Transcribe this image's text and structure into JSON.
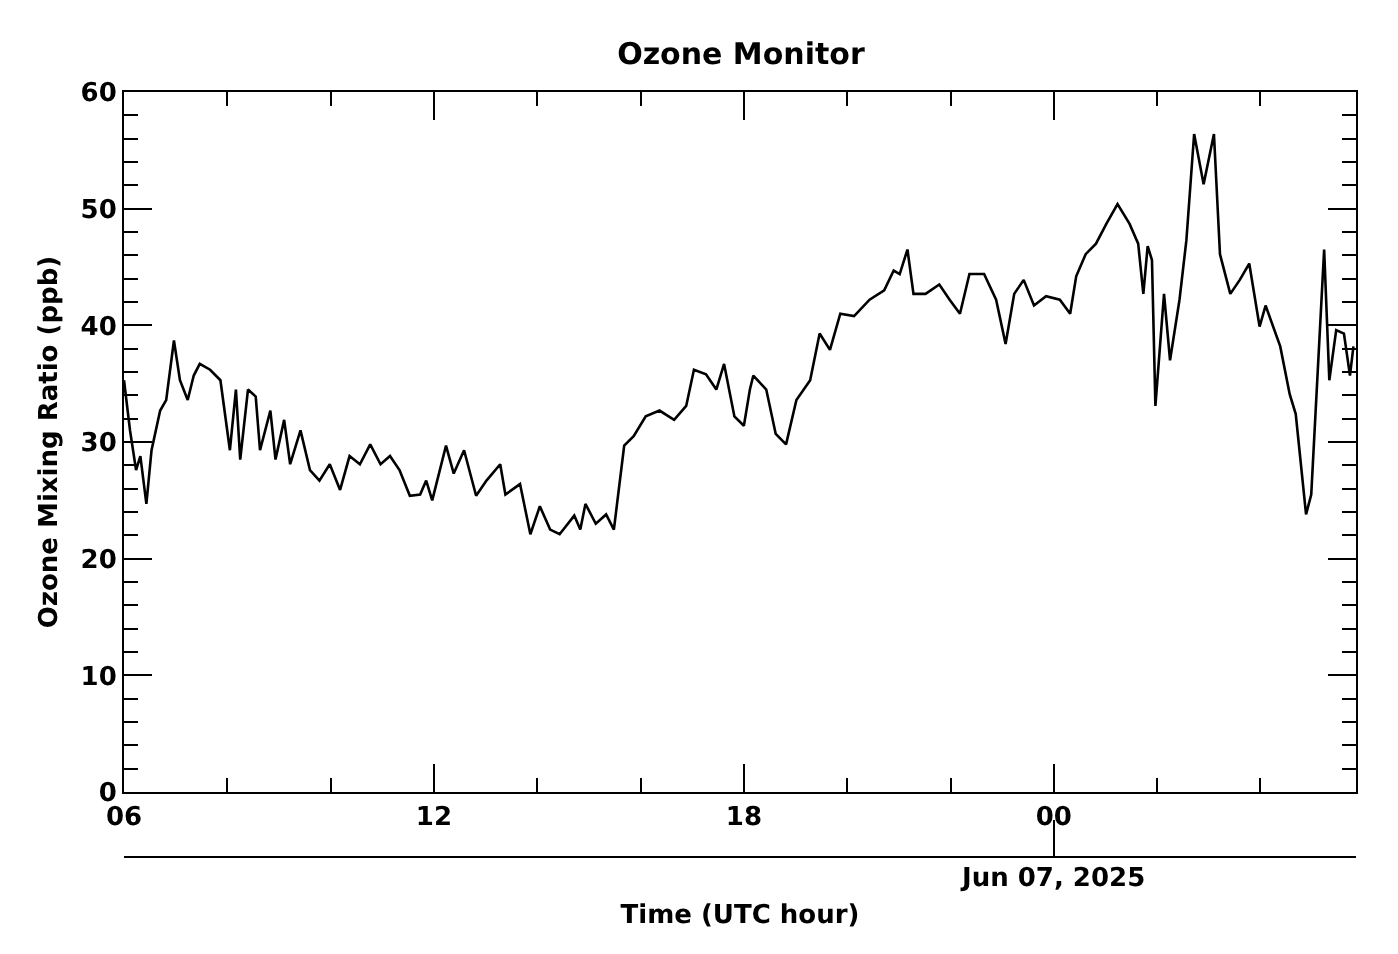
{
  "chart_data": {
    "type": "line",
    "title": "Ozone Monitor",
    "xlabel": "Time (UTC hour)",
    "ylabel": "Ozone Mixing Ratio (ppb)",
    "color": "#000000",
    "x": [
      "2025-06-06T06:00",
      "2025-06-06T06:07",
      "2025-06-06T06:14",
      "2025-06-06T06:19",
      "2025-06-06T06:26",
      "2025-06-06T06:32",
      "2025-06-06T06:42",
      "2025-06-06T06:49",
      "2025-06-06T06:58",
      "2025-06-06T07:05",
      "2025-06-06T07:14",
      "2025-06-06T07:21",
      "2025-06-06T07:28",
      "2025-06-06T07:40",
      "2025-06-06T07:52",
      "2025-06-06T08:03",
      "2025-06-06T08:10",
      "2025-06-06T08:15",
      "2025-06-06T08:24",
      "2025-06-06T08:33",
      "2025-06-06T08:38",
      "2025-06-06T08:50",
      "2025-06-06T08:56",
      "2025-06-06T09:06",
      "2025-06-06T09:13",
      "2025-06-06T09:25",
      "2025-06-06T09:36",
      "2025-06-06T09:47",
      "2025-06-06T09:59",
      "2025-06-06T10:11",
      "2025-06-06T10:22",
      "2025-06-06T10:34",
      "2025-06-06T10:46",
      "2025-06-06T10:58",
      "2025-06-06T11:09",
      "2025-06-06T11:20",
      "2025-06-06T11:32",
      "2025-06-06T11:44",
      "2025-06-06T11:51",
      "2025-06-06T11:58",
      "2025-06-06T12:14",
      "2025-06-06T12:23",
      "2025-06-06T12:35",
      "2025-06-06T12:49",
      "2025-06-06T13:01",
      "2025-06-06T13:17",
      "2025-06-06T13:23",
      "2025-06-06T13:40",
      "2025-06-06T13:52",
      "2025-06-06T14:03",
      "2025-06-06T14:15",
      "2025-06-06T14:26",
      "2025-06-06T14:43",
      "2025-06-06T14:50",
      "2025-06-06T14:56",
      "2025-06-06T15:08",
      "2025-06-06T15:20",
      "2025-06-06T15:29",
      "2025-06-06T15:41",
      "2025-06-06T15:52",
      "2025-06-06T16:06",
      "2025-06-06T16:22",
      "2025-06-06T16:39",
      "2025-06-06T16:53",
      "2025-06-06T17:02",
      "2025-06-06T17:16",
      "2025-06-06T17:28",
      "2025-06-06T17:37",
      "2025-06-06T17:49",
      "2025-06-06T18:00",
      "2025-06-06T18:07",
      "2025-06-06T18:11",
      "2025-06-06T18:26",
      "2025-06-06T18:37",
      "2025-06-06T18:49",
      "2025-06-06T19:01",
      "2025-06-06T19:17",
      "2025-06-06T19:28",
      "2025-06-06T19:40",
      "2025-06-06T19:52",
      "2025-06-06T20:08",
      "2025-06-06T20:26",
      "2025-06-06T20:43",
      "2025-06-06T20:54",
      "2025-06-06T21:01",
      "2025-06-06T21:10",
      "2025-06-06T21:17",
      "2025-06-06T21:31",
      "2025-06-06T21:47",
      "2025-06-06T21:59",
      "2025-06-06T22:11",
      "2025-06-06T22:22",
      "2025-06-06T22:39",
      "2025-06-06T22:53",
      "2025-06-06T23:04",
      "2025-06-06T23:14",
      "2025-06-06T23:25",
      "2025-06-06T23:37",
      "2025-06-06T23:51",
      "2025-06-07T00:07",
      "2025-06-07T00:19",
      "2025-06-07T00:26",
      "2025-06-07T00:37",
      "2025-06-07T00:49",
      "2025-06-07T01:01",
      "2025-06-07T01:14",
      "2025-06-07T01:28",
      "2025-06-07T01:38",
      "2025-06-07T01:44",
      "2025-06-07T01:49",
      "2025-06-07T01:54",
      "2025-06-07T01:58",
      "2025-06-07T02:08",
      "2025-06-07T02:15",
      "2025-06-07T02:26",
      "2025-06-07T02:34",
      "2025-06-07T02:43",
      "2025-06-07T02:54",
      "2025-06-07T03:06",
      "2025-06-07T03:13",
      "2025-06-07T03:25",
      "2025-06-07T03:36",
      "2025-06-07T03:47",
      "2025-06-07T03:59",
      "2025-06-07T04:06",
      "2025-06-07T04:23",
      "2025-06-07T04:34",
      "2025-06-07T04:41",
      "2025-06-07T04:53",
      "2025-06-07T04:59",
      "2025-06-07T05:14",
      "2025-06-07T05:20",
      "2025-06-07T05:28",
      "2025-06-07T05:37",
      "2025-06-07T05:44",
      "2025-06-07T05:48"
    ],
    "values": [
      35.3,
      31.0,
      27.6,
      28.8,
      24.7,
      29.3,
      32.7,
      33.6,
      38.7,
      35.3,
      33.6,
      35.7,
      36.7,
      36.2,
      35.3,
      29.3,
      34.5,
      28.5,
      34.5,
      33.9,
      29.3,
      32.7,
      28.5,
      31.9,
      28.1,
      31.0,
      27.6,
      26.7,
      28.1,
      25.9,
      28.8,
      28.1,
      29.8,
      28.1,
      28.8,
      27.6,
      25.4,
      25.5,
      26.7,
      25.0,
      29.7,
      27.3,
      29.3,
      25.4,
      26.7,
      28.1,
      25.5,
      26.4,
      22.1,
      24.5,
      22.5,
      22.1,
      23.7,
      22.5,
      24.7,
      23.0,
      23.8,
      22.5,
      29.7,
      30.5,
      32.2,
      32.7,
      31.9,
      33.1,
      36.2,
      35.8,
      34.5,
      36.7,
      32.2,
      31.4,
      34.5,
      35.7,
      34.5,
      30.7,
      29.8,
      33.6,
      35.3,
      39.3,
      37.9,
      41.0,
      40.8,
      42.2,
      43.0,
      44.7,
      44.4,
      46.5,
      42.7,
      42.7,
      43.5,
      42.2,
      41.0,
      44.4,
      44.4,
      42.2,
      38.4,
      42.7,
      43.9,
      41.7,
      42.5,
      42.2,
      41.0,
      44.2,
      46.1,
      47.0,
      48.7,
      50.4,
      48.7,
      47.0,
      42.7,
      46.8,
      45.6,
      33.1,
      42.7,
      37.0,
      42.2,
      47.3,
      56.4,
      52.1,
      56.4,
      46.1,
      42.7,
      43.9,
      45.3,
      39.9,
      41.7,
      38.2,
      34.1,
      32.4,
      23.8,
      25.5,
      46.5,
      35.3,
      39.6,
      39.3,
      35.7,
      38.2
    ],
    "xlim": [
      "2025-06-06T06:00",
      "2025-06-07T05:51"
    ],
    "xticks": [
      {
        "value": "2025-06-06T06:00",
        "label": "06"
      },
      {
        "value": "2025-06-06T08:00",
        "label": null
      },
      {
        "value": "2025-06-06T10:00",
        "label": null
      },
      {
        "value": "2025-06-06T12:00",
        "label": "12"
      },
      {
        "value": "2025-06-06T14:00",
        "label": null
      },
      {
        "value": "2025-06-06T16:00",
        "label": null
      },
      {
        "value": "2025-06-06T18:00",
        "label": "18"
      },
      {
        "value": "2025-06-06T20:00",
        "label": null
      },
      {
        "value": "2025-06-06T22:00",
        "label": null
      },
      {
        "value": "2025-06-07T00:00",
        "label": "00"
      },
      {
        "value": "2025-06-07T02:00",
        "label": null
      },
      {
        "value": "2025-06-07T04:00",
        "label": null
      }
    ],
    "annotations": [
      "Jun 07, 2025"
    ],
    "ylim": [
      0,
      60
    ],
    "yticks": [
      0,
      {
        "value": 2,
        "label": null
      },
      {
        "value": 4,
        "label": null
      },
      {
        "value": 6,
        "label": null
      },
      {
        "value": 8,
        "label": null
      },
      10,
      {
        "value": 12,
        "label": null
      },
      {
        "value": 14,
        "label": null
      },
      {
        "value": 16,
        "label": null
      },
      {
        "value": 18,
        "label": null
      },
      20,
      {
        "value": 22,
        "label": null
      },
      {
        "value": 24,
        "label": null
      },
      {
        "value": 26,
        "label": null
      },
      {
        "value": 28,
        "label": null
      },
      30,
      {
        "value": 32,
        "label": null
      },
      {
        "value": 34,
        "label": null
      },
      {
        "value": 36,
        "label": null
      },
      {
        "value": 38,
        "label": null
      },
      40,
      {
        "value": 42,
        "label": null
      },
      {
        "value": 44,
        "label": null
      },
      {
        "value": 46,
        "label": null
      },
      {
        "value": 48,
        "label": null
      },
      50,
      {
        "value": 52,
        "label": null
      },
      {
        "value": 54,
        "label": null
      },
      {
        "value": 56,
        "label": null
      },
      {
        "value": 58,
        "label": null
      },
      60
    ]
  }
}
